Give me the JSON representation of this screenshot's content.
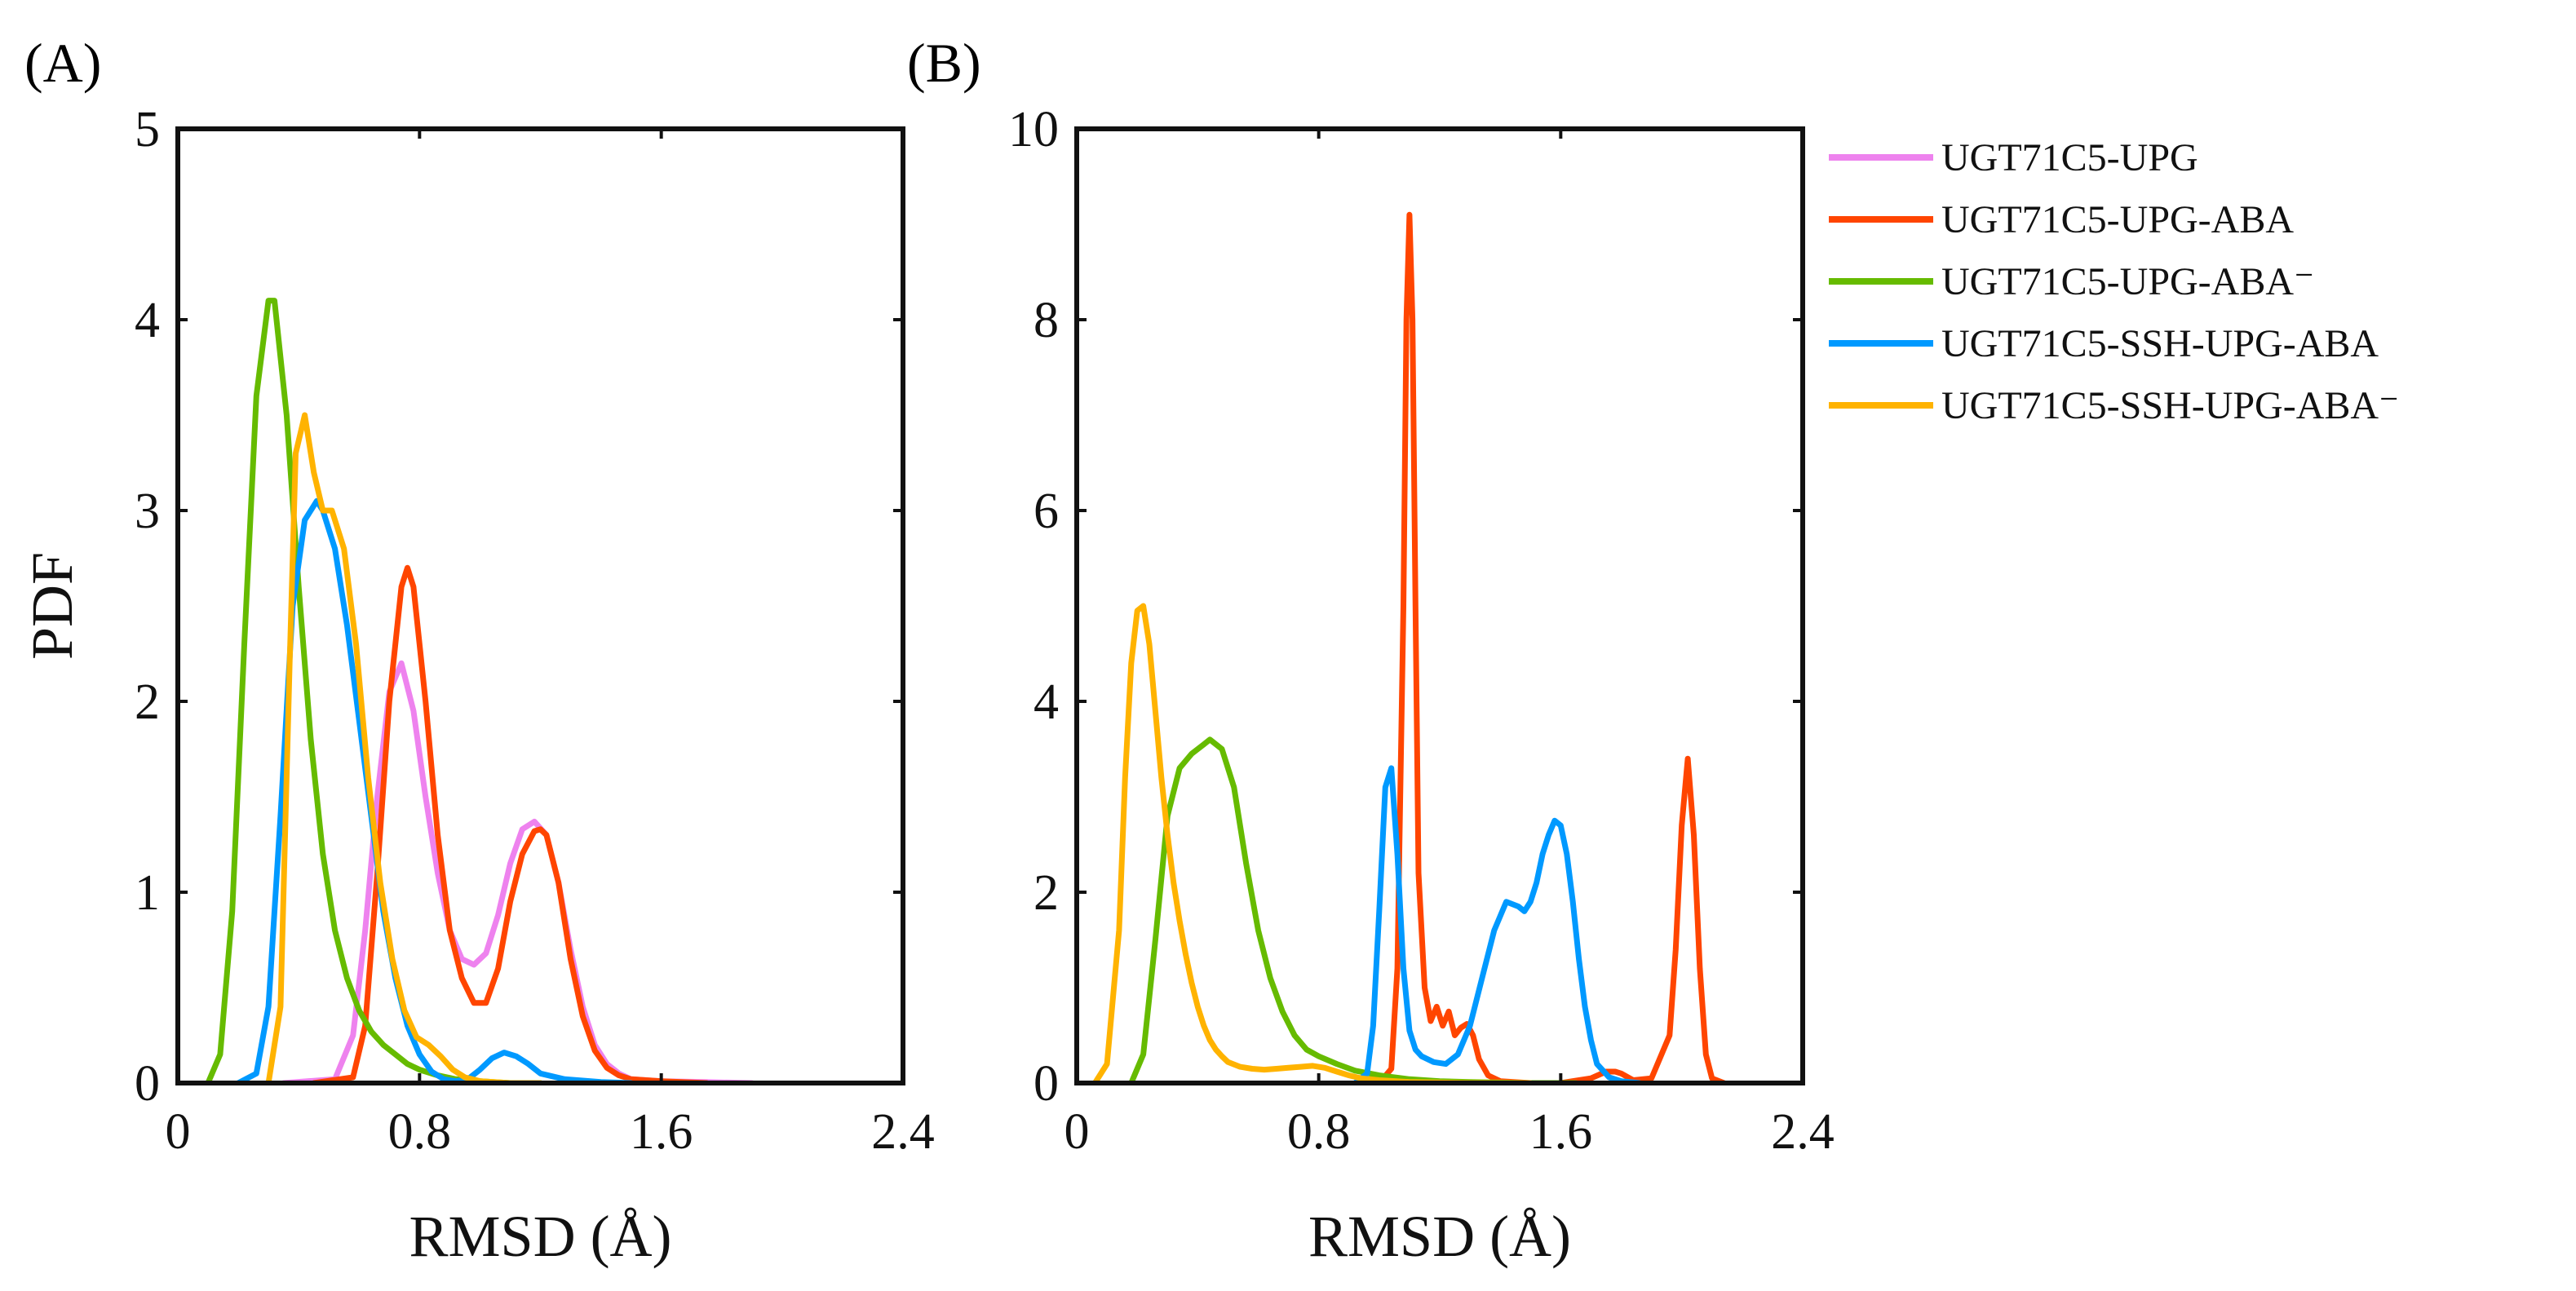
{
  "panels": {
    "a": {
      "label": "(A)"
    },
    "b": {
      "label": "(B)"
    }
  },
  "chart_data": [
    {
      "type": "line",
      "panel": "A",
      "title": "",
      "xlabel": "RMSD (Å)",
      "ylabel": "PDF",
      "xlim": [
        0,
        2.4
      ],
      "ylim": [
        0,
        5
      ],
      "xticks": [
        0,
        0.8,
        1.6,
        2.4
      ],
      "xtick_labels": [
        "0",
        "0.8",
        "1.6",
        "2.4"
      ],
      "yticks": [
        0,
        1,
        2,
        3,
        4,
        5
      ],
      "ytick_labels": [
        "0",
        "1",
        "2",
        "3",
        "4",
        "5"
      ],
      "grid": false,
      "series": [
        {
          "name": "UGT71C5-UPG",
          "color": "#EE82EE",
          "x": [
            0.35,
            0.52,
            0.58,
            0.62,
            0.66,
            0.7,
            0.74,
            0.78,
            0.82,
            0.86,
            0.9,
            0.94,
            0.98,
            1.02,
            1.06,
            1.1,
            1.14,
            1.18,
            1.22,
            1.26,
            1.3,
            1.34,
            1.38,
            1.42,
            1.46,
            1.5,
            1.6,
            1.75,
            1.9
          ],
          "y": [
            0,
            0.02,
            0.25,
            0.8,
            1.5,
            2.05,
            2.2,
            1.95,
            1.5,
            1.1,
            0.8,
            0.65,
            0.62,
            0.68,
            0.88,
            1.15,
            1.33,
            1.37,
            1.3,
            1.05,
            0.7,
            0.4,
            0.2,
            0.1,
            0.05,
            0.02,
            0.01,
            0.005,
            0
          ]
        },
        {
          "name": "UGT71C5-UPG-ABA",
          "color": "#FF4500",
          "x": [
            0.45,
            0.58,
            0.62,
            0.66,
            0.7,
            0.74,
            0.76,
            0.78,
            0.82,
            0.86,
            0.9,
            0.94,
            0.98,
            1.02,
            1.06,
            1.1,
            1.14,
            1.18,
            1.2,
            1.22,
            1.26,
            1.3,
            1.34,
            1.38,
            1.42,
            1.46,
            1.5,
            1.6,
            1.75
          ],
          "y": [
            0,
            0.03,
            0.3,
            1.1,
            2.0,
            2.6,
            2.7,
            2.6,
            2.0,
            1.3,
            0.8,
            0.55,
            0.42,
            0.42,
            0.6,
            0.95,
            1.2,
            1.32,
            1.33,
            1.3,
            1.05,
            0.65,
            0.35,
            0.17,
            0.08,
            0.04,
            0.02,
            0.01,
            0
          ]
        },
        {
          "name": "UGT71C5-UPG-ABA⁻",
          "color": "#66BB00",
          "x": [
            0.1,
            0.14,
            0.18,
            0.22,
            0.26,
            0.3,
            0.32,
            0.36,
            0.4,
            0.44,
            0.48,
            0.52,
            0.56,
            0.6,
            0.64,
            0.68,
            0.72,
            0.76,
            0.8,
            0.86,
            0.92,
            1.0,
            1.1,
            1.2
          ],
          "y": [
            0,
            0.15,
            0.9,
            2.3,
            3.6,
            4.1,
            4.1,
            3.5,
            2.6,
            1.8,
            1.2,
            0.8,
            0.55,
            0.38,
            0.27,
            0.2,
            0.15,
            0.1,
            0.07,
            0.04,
            0.02,
            0.01,
            0,
            0
          ]
        },
        {
          "name": "UGT71C5-SSH-UPG-ABA",
          "color": "#0099FF",
          "x": [
            0.2,
            0.26,
            0.3,
            0.34,
            0.38,
            0.42,
            0.46,
            0.48,
            0.52,
            0.56,
            0.6,
            0.64,
            0.68,
            0.72,
            0.76,
            0.8,
            0.84,
            0.88,
            0.92,
            0.96,
            1.0,
            1.04,
            1.08,
            1.12,
            1.16,
            1.2,
            1.28,
            1.4,
            1.5
          ],
          "y": [
            0,
            0.05,
            0.4,
            1.4,
            2.5,
            2.95,
            3.05,
            3.0,
            2.8,
            2.4,
            1.9,
            1.4,
            0.9,
            0.55,
            0.3,
            0.15,
            0.06,
            0.02,
            0.01,
            0.02,
            0.07,
            0.13,
            0.16,
            0.14,
            0.1,
            0.05,
            0.02,
            0.005,
            0
          ]
        },
        {
          "name": "UGT71C5-SSH-UPG-ABA⁻",
          "color": "#FFB300",
          "x": [
            0.3,
            0.34,
            0.37,
            0.39,
            0.42,
            0.45,
            0.48,
            0.51,
            0.55,
            0.59,
            0.63,
            0.67,
            0.71,
            0.75,
            0.79,
            0.83,
            0.87,
            0.91,
            0.95,
            1.0,
            1.1,
            1.2
          ],
          "y": [
            0,
            0.4,
            2.2,
            3.3,
            3.5,
            3.2,
            3.0,
            3.0,
            2.8,
            2.3,
            1.6,
            1.05,
            0.65,
            0.38,
            0.24,
            0.2,
            0.14,
            0.07,
            0.03,
            0.01,
            0,
            0
          ]
        }
      ]
    },
    {
      "type": "line",
      "panel": "B",
      "title": "",
      "xlabel": "RMSD (Å)",
      "ylabel": "",
      "xlim": [
        0,
        2.4
      ],
      "ylim": [
        0,
        10
      ],
      "xticks": [
        0,
        0.8,
        1.6,
        2.4
      ],
      "xtick_labels": [
        "0",
        "0.8",
        "1.6",
        "2.4"
      ],
      "yticks": [
        0,
        2,
        4,
        6,
        8,
        10
      ],
      "ytick_labels": [
        "0",
        "2",
        "4",
        "6",
        "8",
        "10"
      ],
      "grid": false,
      "series": [
        {
          "name": "UGT71C5-UPG",
          "color": "#EE82EE",
          "x": [],
          "y": []
        },
        {
          "name": "UGT71C5-UPG-ABA",
          "color": "#FF4500",
          "x": [
            1.0,
            1.04,
            1.06,
            1.08,
            1.09,
            1.1,
            1.11,
            1.12,
            1.13,
            1.15,
            1.17,
            1.19,
            1.21,
            1.23,
            1.25,
            1.27,
            1.29,
            1.31,
            1.33,
            1.36,
            1.4,
            1.5,
            1.6,
            1.7,
            1.75,
            1.78,
            1.8,
            1.84,
            1.9,
            1.96,
            1.98,
            2.0,
            2.02,
            2.04,
            2.06,
            2.08,
            2.1,
            2.14
          ],
          "y": [
            0,
            0.15,
            1.2,
            5.0,
            8.0,
            9.1,
            8.0,
            5.0,
            2.2,
            1.0,
            0.65,
            0.8,
            0.6,
            0.75,
            0.5,
            0.58,
            0.62,
            0.5,
            0.25,
            0.08,
            0.02,
            0,
            0,
            0.05,
            0.12,
            0.12,
            0.1,
            0.03,
            0.05,
            0.5,
            1.4,
            2.7,
            3.4,
            2.6,
            1.2,
            0.3,
            0.05,
            0
          ]
        },
        {
          "name": "UGT71C5-UPG-ABA⁻",
          "color": "#66BB00",
          "x": [
            0.18,
            0.22,
            0.26,
            0.3,
            0.34,
            0.38,
            0.42,
            0.44,
            0.48,
            0.52,
            0.56,
            0.6,
            0.64,
            0.68,
            0.72,
            0.76,
            0.8,
            0.86,
            0.92,
            1.0,
            1.1,
            1.2,
            1.3,
            1.4,
            1.5,
            1.6,
            1.65
          ],
          "y": [
            0,
            0.3,
            1.5,
            2.8,
            3.3,
            3.45,
            3.55,
            3.6,
            3.5,
            3.1,
            2.3,
            1.6,
            1.1,
            0.75,
            0.5,
            0.35,
            0.28,
            0.2,
            0.13,
            0.08,
            0.04,
            0.02,
            0.01,
            0.005,
            0,
            0,
            0
          ]
        },
        {
          "name": "UGT71C5-SSH-UPG-ABA",
          "color": "#0099FF",
          "x": [
            0.92,
            0.96,
            0.98,
            1.0,
            1.02,
            1.04,
            1.06,
            1.08,
            1.1,
            1.12,
            1.14,
            1.18,
            1.22,
            1.26,
            1.3,
            1.34,
            1.38,
            1.42,
            1.46,
            1.48,
            1.5,
            1.52,
            1.54,
            1.56,
            1.58,
            1.6,
            1.62,
            1.64,
            1.66,
            1.68,
            1.7,
            1.72,
            1.76,
            1.8,
            1.86
          ],
          "y": [
            0,
            0.1,
            0.6,
            1.8,
            3.1,
            3.3,
            2.4,
            1.2,
            0.55,
            0.35,
            0.28,
            0.22,
            0.2,
            0.3,
            0.6,
            1.1,
            1.6,
            1.9,
            1.85,
            1.8,
            1.9,
            2.1,
            2.4,
            2.6,
            2.75,
            2.7,
            2.4,
            1.9,
            1.3,
            0.8,
            0.45,
            0.2,
            0.06,
            0.02,
            0
          ]
        },
        {
          "name": "UGT71C5-SSH-UPG-ABA⁻",
          "color": "#FFB300",
          "x": [
            0.06,
            0.1,
            0.14,
            0.16,
            0.18,
            0.2,
            0.22,
            0.24,
            0.26,
            0.28,
            0.3,
            0.32,
            0.34,
            0.36,
            0.38,
            0.4,
            0.42,
            0.44,
            0.46,
            0.48,
            0.5,
            0.54,
            0.58,
            0.62,
            0.66,
            0.7,
            0.74,
            0.78,
            0.82,
            0.86,
            0.9,
            0.94,
            1.0,
            1.1,
            1.2,
            1.3,
            1.4,
            1.5
          ],
          "y": [
            0,
            0.2,
            1.6,
            3.2,
            4.4,
            4.95,
            5.0,
            4.6,
            3.9,
            3.2,
            2.6,
            2.1,
            1.7,
            1.35,
            1.05,
            0.8,
            0.6,
            0.45,
            0.35,
            0.28,
            0.22,
            0.17,
            0.15,
            0.14,
            0.15,
            0.16,
            0.17,
            0.18,
            0.16,
            0.12,
            0.08,
            0.05,
            0.03,
            0.01,
            0.005,
            0,
            0,
            0
          ]
        }
      ]
    }
  ],
  "legend": {
    "items": [
      {
        "label": "UGT71C5-UPG",
        "color": "#EE82EE"
      },
      {
        "label": "UGT71C5-UPG-ABA",
        "color": "#FF4500"
      },
      {
        "label": "UGT71C5-UPG-ABA⁻",
        "color": "#66BB00"
      },
      {
        "label": "UGT71C5-SSH-UPG-ABA",
        "color": "#0099FF"
      },
      {
        "label": "UGT71C5-SSH-UPG-ABA⁻",
        "color": "#FFB300"
      }
    ]
  }
}
